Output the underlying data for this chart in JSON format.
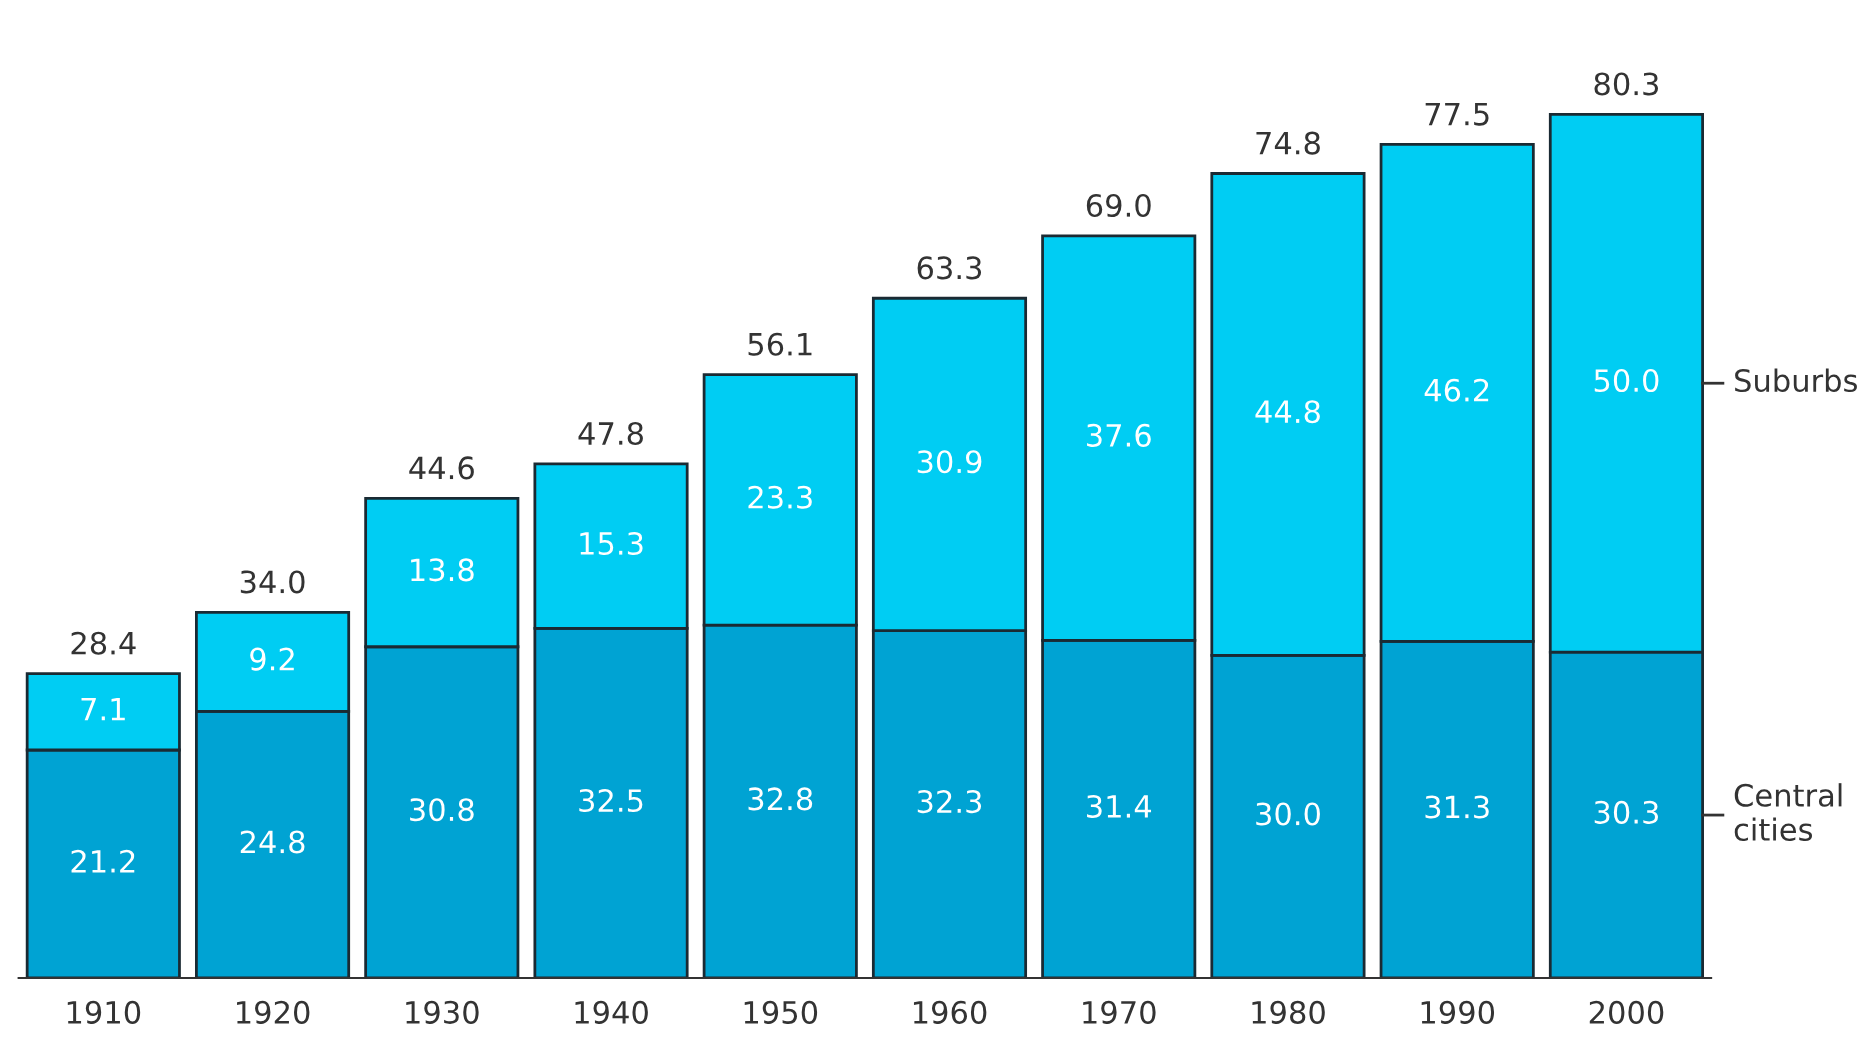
{
  "chart_data": {
    "type": "bar",
    "stacked": true,
    "grid": false,
    "categories": [
      "1910",
      "1920",
      "1930",
      "1940",
      "1950",
      "1960",
      "1970",
      "1980",
      "1990",
      "2000"
    ],
    "series": [
      {
        "name": "Central\ncities",
        "color": "#00a3d3",
        "values": [
          21.2,
          24.8,
          30.8,
          32.5,
          32.8,
          32.3,
          31.4,
          30.0,
          31.3,
          30.3
        ],
        "value_labels": [
          "21.2",
          "24.8",
          "30.8",
          "32.5",
          "32.8",
          "32.3",
          "31.4",
          "30.0",
          "31.3",
          "30.3"
        ]
      },
      {
        "name": "Suburbs",
        "color": "#00cdf3",
        "values": [
          7.1,
          9.2,
          13.8,
          15.3,
          23.3,
          30.9,
          37.6,
          44.8,
          46.2,
          50.0
        ],
        "value_labels": [
          "7.1",
          "9.2",
          "13.8",
          "15.3",
          "23.3",
          "30.9",
          "37.6",
          "44.8",
          "46.2",
          "50.0"
        ]
      }
    ],
    "totals": [
      "28.4",
      "34.0",
      "44.6",
      "47.8",
      "56.1",
      "63.3",
      "69.0",
      "74.8",
      "77.5",
      "80.3"
    ]
  }
}
